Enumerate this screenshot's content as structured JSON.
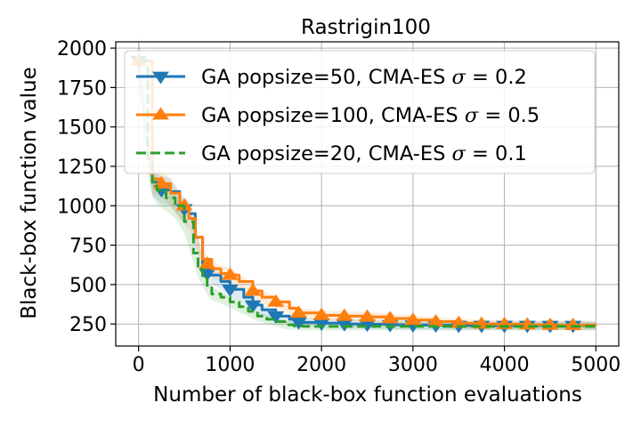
{
  "chart_data": {
    "type": "line",
    "title": "Rastrigin100",
    "xlabel": "Number of black-box function evaluations",
    "ylabel": "Black-box function value",
    "xlim": [
      -250,
      5250
    ],
    "ylim": [
      110,
      2040
    ],
    "x_ticks": [
      0,
      1000,
      2000,
      3000,
      4000,
      5000
    ],
    "y_ticks": [
      250,
      500,
      750,
      1000,
      1250,
      1500,
      1750,
      2000
    ],
    "x_tick_labels": [
      "0",
      "1000",
      "2000",
      "3000",
      "4000",
      "5000"
    ],
    "y_tick_labels": [
      "250",
      "500",
      "750",
      "1000",
      "1250",
      "1500",
      "1750",
      "2000"
    ],
    "grid": true,
    "legend_position": "top-left",
    "series": [
      {
        "name": "GA popsize=50, CMA-ES σ = 0.2",
        "legend_main": "GA popsize=50, CMA-ES ",
        "legend_sigma": "σ",
        "legend_value": " = 0.2",
        "color": "#1f77b4",
        "linestyle": "solid",
        "marker": "triangle-down",
        "x": [
          0,
          150,
          250,
          350,
          450,
          550,
          620,
          700,
          780,
          900,
          1000,
          1150,
          1250,
          1350,
          1500,
          1650,
          1800,
          2000,
          2250,
          2500,
          2750,
          3000,
          3250,
          3500,
          3750,
          4000,
          4250,
          4500,
          4750,
          5000
        ],
        "y": [
          1920,
          1150,
          1100,
          1090,
          1000,
          950,
          800,
          620,
          560,
          520,
          470,
          420,
          370,
          340,
          300,
          280,
          260,
          255,
          250,
          248,
          245,
          243,
          242,
          240,
          240,
          240,
          240,
          240,
          240,
          240
        ],
        "marker_x": [
          0,
          250,
          500,
          750,
          1000,
          1250,
          1500,
          1750,
          2000,
          2250,
          2500,
          2750,
          3000,
          3250,
          3500,
          3750,
          4000,
          4250,
          4500,
          4750
        ],
        "marker_y": [
          1920,
          1100,
          980,
          570,
          470,
          370,
          300,
          262,
          255,
          250,
          248,
          245,
          243,
          242,
          240,
          240,
          240,
          240,
          240,
          240
        ]
      },
      {
        "name": "GA popsize=100, CMA-ES σ = 0.5",
        "legend_main": "GA popsize=100, CMA-ES ",
        "legend_sigma": "σ",
        "legend_value": " = 0.5",
        "color": "#ff7f0e",
        "linestyle": "solid",
        "marker": "triangle-up",
        "x": [
          0,
          150,
          250,
          350,
          450,
          550,
          620,
          700,
          800,
          900,
          1000,
          1100,
          1250,
          1350,
          1500,
          1650,
          1750,
          2000,
          2250,
          2500,
          2750,
          3000,
          3250,
          3500,
          3750,
          4000,
          4250,
          4500,
          4750,
          5000
        ],
        "y": [
          1920,
          1170,
          1140,
          1080,
          1000,
          920,
          800,
          660,
          600,
          570,
          560,
          520,
          460,
          420,
          390,
          350,
          320,
          305,
          300,
          295,
          285,
          275,
          265,
          255,
          250,
          248,
          245,
          243,
          242,
          240
        ],
        "marker_x": [
          0,
          250,
          500,
          750,
          1000,
          1250,
          1500,
          1750,
          2000,
          2250,
          2500,
          2750,
          3000,
          3250,
          3500,
          3750,
          4000,
          4250,
          4500,
          4750
        ],
        "marker_y": [
          1920,
          1140,
          1000,
          630,
          560,
          460,
          390,
          320,
          305,
          300,
          295,
          285,
          275,
          265,
          255,
          250,
          248,
          245,
          243,
          242
        ]
      },
      {
        "name": "GA popsize=20, CMA-ES σ = 0.1",
        "legend_main": "GA popsize=20, CMA-ES ",
        "legend_sigma": "σ",
        "legend_value": " = 0.1",
        "color": "#2ca02c",
        "linestyle": "dashed",
        "marker": "none",
        "x": [
          0,
          100,
          150,
          200,
          300,
          400,
          500,
          600,
          650,
          700,
          750,
          800,
          900,
          1000,
          1100,
          1200,
          1300,
          1400,
          1500,
          1600,
          1700,
          1800,
          2000,
          2500,
          3000,
          3500,
          4000,
          4500,
          5000
        ],
        "y": [
          1920,
          1300,
          1150,
          1100,
          1050,
          1000,
          900,
          700,
          600,
          540,
          480,
          440,
          420,
          390,
          360,
          330,
          300,
          280,
          265,
          245,
          238,
          235,
          235,
          235,
          235,
          235,
          235,
          235,
          235
        ]
      }
    ]
  }
}
